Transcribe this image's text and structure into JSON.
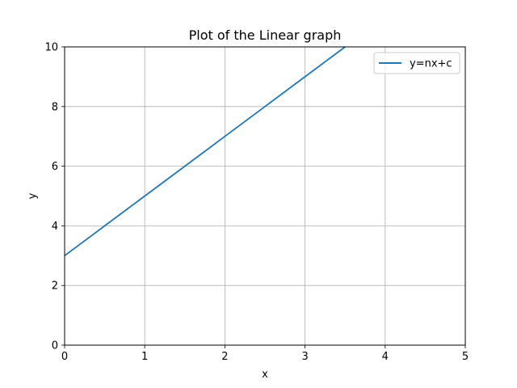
{
  "chart_data": {
    "type": "line",
    "title": "Plot of the Linear graph",
    "xlabel": "x",
    "ylabel": "y",
    "xlim": [
      0,
      5
    ],
    "ylim": [
      0,
      10
    ],
    "xticks": [
      0,
      1,
      2,
      3,
      4,
      5
    ],
    "yticks": [
      0,
      2,
      4,
      6,
      8,
      10
    ],
    "xtick_labels": [
      "0",
      "1",
      "2",
      "3",
      "4",
      "5"
    ],
    "ytick_labels": [
      "0",
      "2",
      "4",
      "6",
      "8",
      "10"
    ],
    "grid": true,
    "legend_position": "top-right",
    "series": [
      {
        "name": "y=nx+c",
        "color": "#1f77b4",
        "x": [
          0,
          0.5,
          1,
          1.5,
          2,
          2.5,
          3,
          3.5
        ],
        "y": [
          3,
          4,
          5,
          6,
          7,
          8,
          9,
          10
        ]
      }
    ]
  }
}
